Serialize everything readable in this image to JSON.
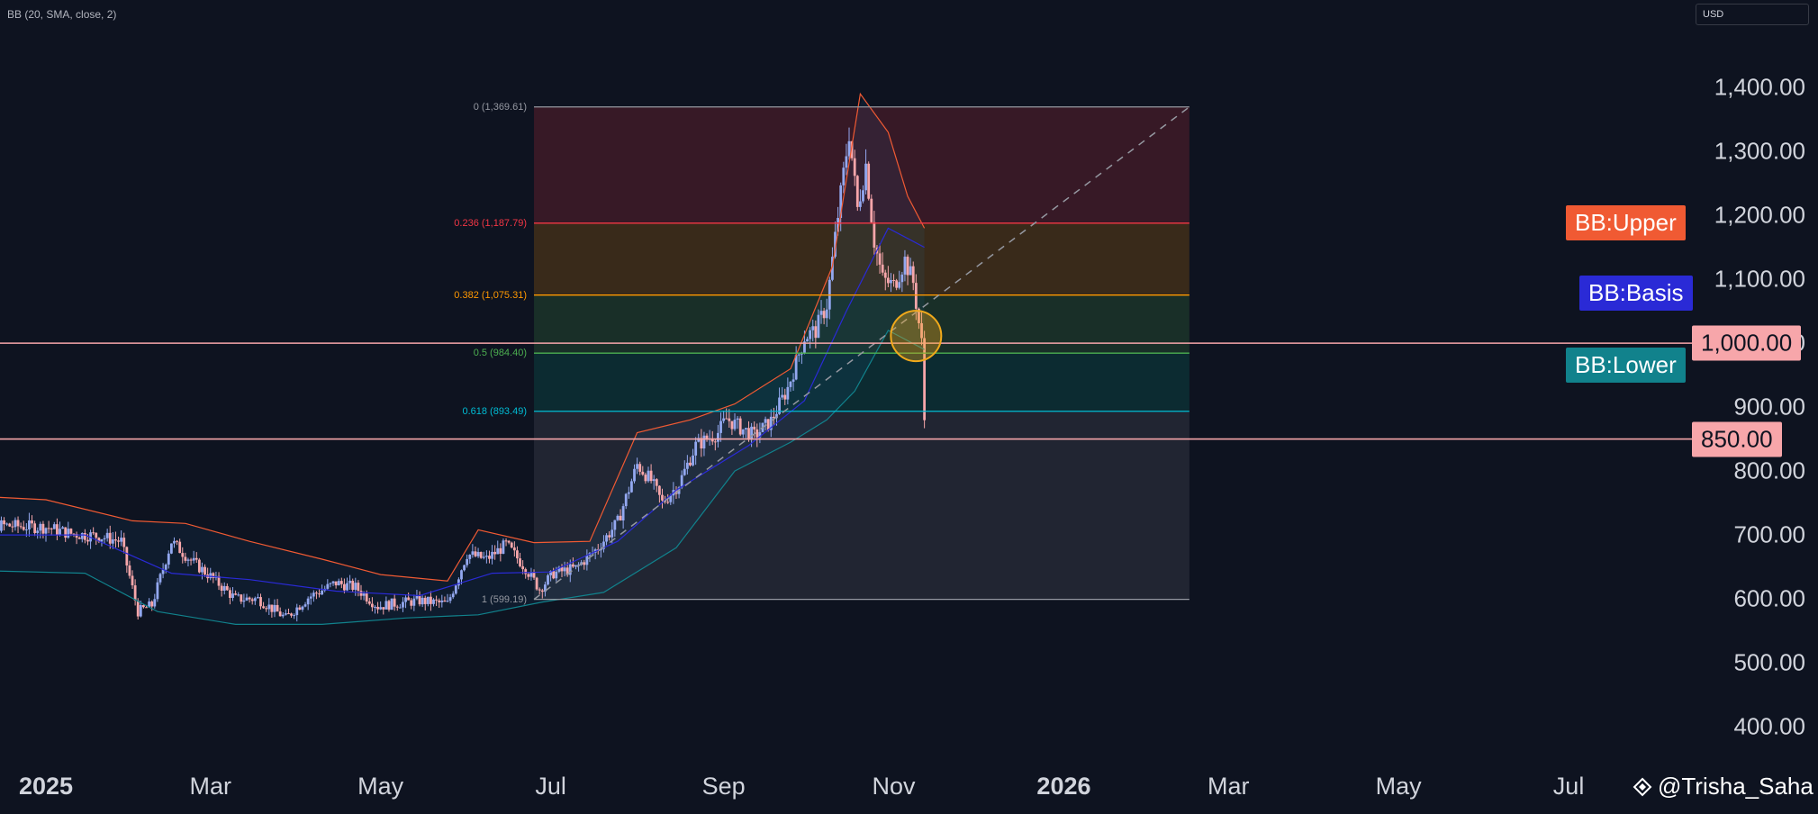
{
  "indicator_label": "BB (20, SMA, close, 2)",
  "currency": "USD",
  "watermark": {
    "text": "@Trisha_Saha",
    "icon": "tradingview-logo-icon"
  },
  "bb_tags": {
    "upper": {
      "label": "BB:Upper",
      "color": "#f05a33"
    },
    "basis": {
      "label": "BB:Basis",
      "color": "#2a2ad6"
    },
    "lower": {
      "label": "BB:Lower",
      "color": "#11828c"
    }
  },
  "price_tags": [
    {
      "label": "1,000.00",
      "value": 1000
    },
    {
      "label": "850.00",
      "value": 850
    }
  ],
  "fib_levels": [
    {
      "label": "0 (1,369.61)",
      "ratio": 0,
      "price": 1369.61,
      "color": "#9598a1",
      "fill": "rgba(242,54,69,0.18)"
    },
    {
      "label": "0.236 (1,187.79)",
      "ratio": 0.236,
      "price": 1187.79,
      "color": "#f23645",
      "fill": "rgba(255,152,0,0.18)"
    },
    {
      "label": "0.382 (1,075.31)",
      "ratio": 0.382,
      "price": 1075.31,
      "color": "#ff9800",
      "fill": "rgba(76,175,80,0.18)"
    },
    {
      "label": "0.5 (984.40)",
      "ratio": 0.5,
      "price": 984.4,
      "color": "#4caf50",
      "fill": "rgba(8,153,129,0.18)"
    },
    {
      "label": "0.618 (893.49)",
      "ratio": 0.618,
      "price": 893.49,
      "color": "#00bcd4",
      "fill": "rgba(120,123,134,0.18)"
    },
    {
      "label": "1 (599.19)",
      "ratio": 1,
      "price": 599.19,
      "color": "#9598a1",
      "fill": null
    }
  ],
  "colors": {
    "background": "#0e1320",
    "up": "#93a8f0",
    "down": "#f7a6aa",
    "price_line": "#f7a6aa",
    "marker": "#f0a91b"
  },
  "chart_data": {
    "type": "candlestick",
    "title": "",
    "currency": "USD",
    "ylim": [
      350,
      1550
    ],
    "y_ticks": [
      400,
      500,
      600,
      700,
      800,
      900,
      1000,
      1100,
      1200,
      1300,
      1400
    ],
    "y_tick_labels": [
      "400.00",
      "500.00",
      "600.00",
      "700.00",
      "800.00",
      "900.00",
      "1,000.00",
      "1,100.00",
      "1,200.00",
      "1,300.00",
      "1,400.00"
    ],
    "x_ticks": [
      "2025",
      "Mar",
      "May",
      "Jul",
      "Sep",
      "Nov",
      "2026",
      "Mar",
      "May",
      "Jul"
    ],
    "x_tick_dates": [
      "2025-01-01",
      "2025-03-01",
      "2025-05-01",
      "2025-07-01",
      "2025-09-01",
      "2025-11-01",
      "2026-01-01",
      "2026-03-01",
      "2026-05-01",
      "2026-07-01"
    ],
    "x_tick_bold": [
      "2025",
      "2026"
    ],
    "x_range": [
      "2024-12-01",
      "2026-08-31"
    ],
    "horizontal_lines": [
      1000,
      850
    ],
    "marker_circle": {
      "date": "2025-11-09",
      "price": 1000
    },
    "fib_trend": {
      "start": {
        "date": "2025-06-25",
        "price": 599.19
      },
      "end": {
        "date": "2026-02-15",
        "price": 1369.61
      }
    },
    "price_path": [
      [
        "2024-12-01",
        700
      ],
      [
        "2024-12-15",
        715
      ],
      [
        "2025-01-01",
        712
      ],
      [
        "2025-01-10",
        702
      ],
      [
        "2025-01-20",
        698
      ],
      [
        "2025-01-28",
        690
      ],
      [
        "2025-02-03",
        580
      ],
      [
        "2025-02-08",
        590
      ],
      [
        "2025-02-15",
        690
      ],
      [
        "2025-02-22",
        660
      ],
      [
        "2025-03-01",
        635
      ],
      [
        "2025-03-10",
        600
      ],
      [
        "2025-03-18",
        600
      ],
      [
        "2025-03-28",
        570
      ],
      [
        "2025-04-05",
        602
      ],
      [
        "2025-04-15",
        625
      ],
      [
        "2025-04-22",
        618
      ],
      [
        "2025-04-30",
        588
      ],
      [
        "2025-05-05",
        592
      ],
      [
        "2025-05-15",
        597
      ],
      [
        "2025-05-25",
        592
      ],
      [
        "2025-06-01",
        670
      ],
      [
        "2025-06-08",
        662
      ],
      [
        "2025-06-15",
        685
      ],
      [
        "2025-06-22",
        648
      ],
      [
        "2025-06-27",
        615
      ],
      [
        "2025-07-02",
        640
      ],
      [
        "2025-07-10",
        648
      ],
      [
        "2025-07-18",
        680
      ],
      [
        "2025-07-25",
        720
      ],
      [
        "2025-08-01",
        810
      ],
      [
        "2025-08-06",
        785
      ],
      [
        "2025-08-10",
        750
      ],
      [
        "2025-08-16",
        780
      ],
      [
        "2025-08-22",
        840
      ],
      [
        "2025-08-30",
        860
      ],
      [
        "2025-09-02",
        882
      ],
      [
        "2025-09-08",
        865
      ],
      [
        "2025-09-12",
        855
      ],
      [
        "2025-09-18",
        878
      ],
      [
        "2025-09-24",
        930
      ],
      [
        "2025-09-30",
        1010
      ],
      [
        "2025-10-04",
        1020
      ],
      [
        "2025-10-08",
        1060
      ],
      [
        "2025-10-12",
        1200
      ],
      [
        "2025-10-16",
        1330
      ],
      [
        "2025-10-19",
        1210
      ],
      [
        "2025-10-22",
        1280
      ],
      [
        "2025-10-25",
        1160
      ],
      [
        "2025-10-28",
        1100
      ],
      [
        "2025-11-01",
        1090
      ],
      [
        "2025-11-05",
        1130
      ],
      [
        "2025-11-08",
        1095
      ],
      [
        "2025-11-11",
        1000
      ],
      [
        "2025-11-12",
        880
      ]
    ],
    "series": [
      {
        "name": "BB:Upper",
        "color": "#f05a33",
        "values": [
          [
            "2024-12-01",
            762
          ],
          [
            "2025-01-01",
            755
          ],
          [
            "2025-02-01",
            722
          ],
          [
            "2025-02-20",
            718
          ],
          [
            "2025-03-15",
            690
          ],
          [
            "2025-04-10",
            662
          ],
          [
            "2025-05-01",
            638
          ],
          [
            "2025-05-25",
            628
          ],
          [
            "2025-06-05",
            708
          ],
          [
            "2025-06-25",
            688
          ],
          [
            "2025-07-15",
            690
          ],
          [
            "2025-08-01",
            860
          ],
          [
            "2025-08-20",
            880
          ],
          [
            "2025-09-05",
            905
          ],
          [
            "2025-09-25",
            960
          ],
          [
            "2025-10-10",
            1120
          ],
          [
            "2025-10-20",
            1390
          ],
          [
            "2025-10-30",
            1330
          ],
          [
            "2025-11-06",
            1230
          ],
          [
            "2025-11-12",
            1180
          ]
        ]
      },
      {
        "name": "BB:Basis",
        "color": "#2a2ad6",
        "values": [
          [
            "2024-12-01",
            700
          ],
          [
            "2025-01-15",
            700
          ],
          [
            "2025-02-15",
            640
          ],
          [
            "2025-03-15",
            630
          ],
          [
            "2025-04-15",
            612
          ],
          [
            "2025-05-15",
            605
          ],
          [
            "2025-06-10",
            640
          ],
          [
            "2025-07-01",
            642
          ],
          [
            "2025-07-25",
            690
          ],
          [
            "2025-08-15",
            770
          ],
          [
            "2025-09-10",
            840
          ],
          [
            "2025-09-30",
            910
          ],
          [
            "2025-10-15",
            1050
          ],
          [
            "2025-10-30",
            1180
          ],
          [
            "2025-11-12",
            1150
          ]
        ]
      },
      {
        "name": "BB:Lower",
        "color": "#11828c",
        "values": [
          [
            "2024-12-01",
            645
          ],
          [
            "2025-01-15",
            640
          ],
          [
            "2025-02-10",
            580
          ],
          [
            "2025-03-10",
            560
          ],
          [
            "2025-04-10",
            560
          ],
          [
            "2025-05-10",
            570
          ],
          [
            "2025-06-05",
            575
          ],
          [
            "2025-06-28",
            595
          ],
          [
            "2025-07-20",
            610
          ],
          [
            "2025-08-15",
            680
          ],
          [
            "2025-09-05",
            800
          ],
          [
            "2025-09-25",
            845
          ],
          [
            "2025-10-08",
            880
          ],
          [
            "2025-10-18",
            925
          ],
          [
            "2025-10-30",
            1020
          ],
          [
            "2025-11-12",
            990
          ]
        ]
      }
    ]
  }
}
